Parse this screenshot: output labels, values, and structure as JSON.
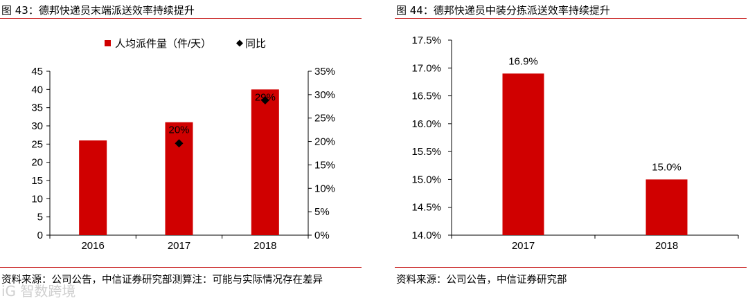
{
  "left": {
    "title": "图 43：德邦快递员末端派送效率持续提升",
    "source": "资料来源：公司公告，中信证券研究部测算注：可能与实际情况存在差异"
  },
  "right": {
    "title": "图 44：德邦快递员中装分拣派送效率持续提升",
    "source": "资料来源：公司公告，中信证券研究部"
  },
  "watermark": "iG 智数跨境",
  "chart_data": [
    {
      "type": "bar",
      "categories": [
        "2016",
        "2017",
        "2018"
      ],
      "series": [
        {
          "name": "人均派件量（件/天）",
          "kind": "bar",
          "axis": "left",
          "values": [
            26,
            31,
            40
          ],
          "color": "#d00000"
        },
        {
          "name": "同比",
          "kind": "scatter",
          "axis": "right",
          "values": [
            null,
            19.6,
            28.8
          ],
          "labels": [
            null,
            "20%",
            "29%"
          ],
          "color": "#000000"
        }
      ],
      "ylim": [
        0,
        45
      ],
      "yticks": [
        "0",
        "5",
        "10",
        "15",
        "20",
        "25",
        "30",
        "35",
        "40",
        "45"
      ],
      "y2lim": [
        0,
        35
      ],
      "y2ticks": [
        "0%",
        "5%",
        "10%",
        "15%",
        "20%",
        "25%",
        "30%",
        "35%"
      ],
      "legend": "top-center",
      "grid": false
    },
    {
      "type": "bar",
      "categories": [
        "2017",
        "2018"
      ],
      "values": [
        16.9,
        15.0
      ],
      "value_labels": [
        "16.9%",
        "15.0%"
      ],
      "color": "#d00000",
      "ylim": [
        14.0,
        17.5
      ],
      "yticks": [
        "14.0%",
        "14.5%",
        "15.0%",
        "15.5%",
        "16.0%",
        "16.5%",
        "17.0%",
        "17.5%"
      ],
      "grid": false
    }
  ]
}
